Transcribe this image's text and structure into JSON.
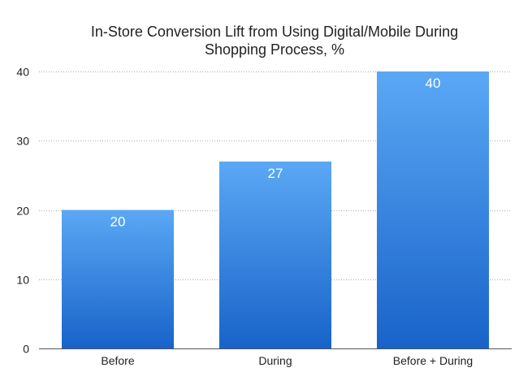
{
  "chart_data": {
    "type": "bar",
    "title": "In-Store Conversion Lift from Using Digital/Mobile During Shopping Process, %",
    "title_lines": [
      "In-Store Conversion Lift from Using Digital/Mobile During",
      "Shopping Process, %"
    ],
    "categories": [
      "Before",
      "During",
      "Before + During"
    ],
    "values": [
      20,
      27,
      40
    ],
    "ylim": [
      0,
      40
    ],
    "yticks": [
      0,
      10,
      20,
      30,
      40
    ],
    "xlabel": "",
    "ylabel": "",
    "grid": true,
    "legend": null,
    "colors": {
      "bar_top": "#5aa8f5",
      "bar_bottom": "#1863c9",
      "data_label": "#ffffff",
      "gridline": "#a9a9a9",
      "text": "#222222"
    }
  }
}
